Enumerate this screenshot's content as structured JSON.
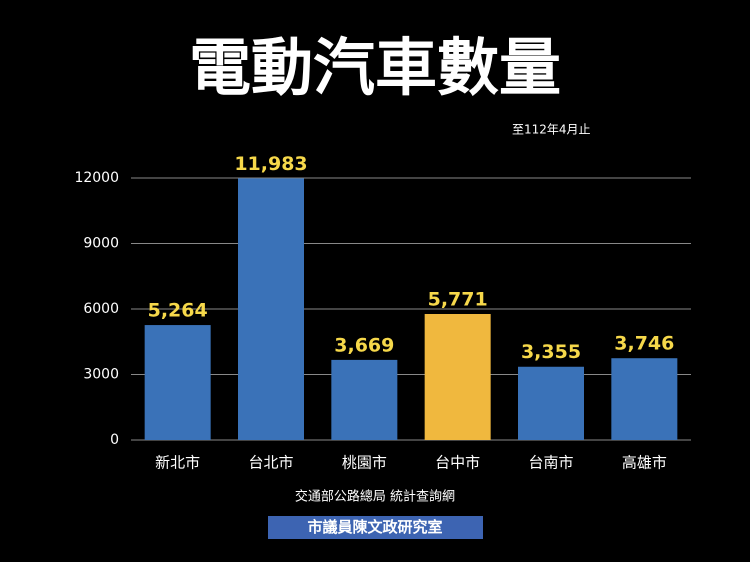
{
  "chart_data": {
    "type": "bar",
    "title": "電動汽車數量",
    "subtitle": "至112年4月止",
    "source": "交通部公路總局 統計查詢網",
    "credit": "市議員陳文政研究室",
    "categories": [
      "新北市",
      "台北市",
      "桃園市",
      "台中市",
      "台南市",
      "高雄市"
    ],
    "values": [
      5264,
      11983,
      3669,
      5771,
      3355,
      3746
    ],
    "value_labels": [
      "5,264",
      "11,983",
      "3,669",
      "5,771",
      "3,355",
      "3,746"
    ],
    "colors": [
      "#3a72b8",
      "#3a72b8",
      "#3a72b8",
      "#f0b83e",
      "#3a72b8",
      "#3a72b8"
    ],
    "value_label_color": "#f6d84a",
    "ylim": [
      0,
      12000
    ],
    "yticks": [
      0,
      3000,
      6000,
      9000,
      12000
    ],
    "grid": true
  }
}
